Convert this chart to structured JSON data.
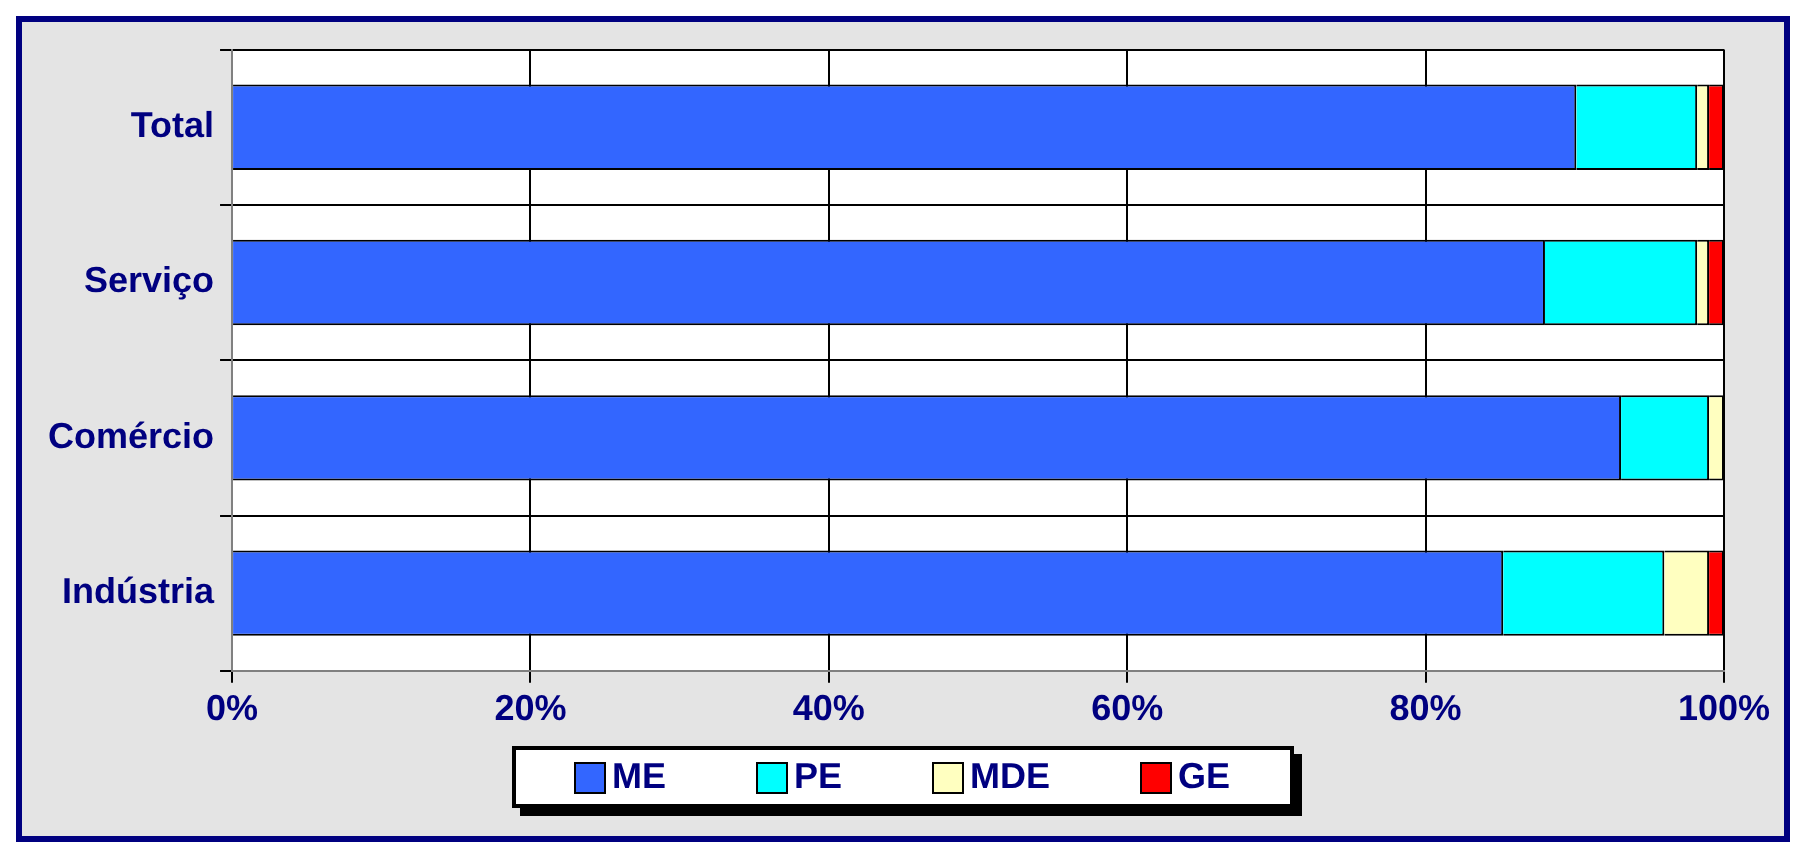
{
  "chart_data": {
    "type": "bar",
    "orientation": "horizontal",
    "stacked": true,
    "categories": [
      "Total",
      "Serviço",
      "Comércio",
      "Indústria"
    ],
    "series": [
      {
        "name": "ME",
        "color": "#3366ff",
        "values": [
          90.1,
          88.0,
          93.1,
          85.2
        ]
      },
      {
        "name": "PE",
        "color": "#00ffff",
        "values": [
          8.1,
          10.2,
          5.9,
          10.8
        ]
      },
      {
        "name": "MDE",
        "color": "#ffffc0",
        "values": [
          0.8,
          0.8,
          1.0,
          3.0
        ]
      },
      {
        "name": "GE",
        "color": "#ff0000",
        "values": [
          1.0,
          1.0,
          0,
          1.0
        ]
      }
    ],
    "xlim": [
      0,
      100
    ],
    "xticks": [
      {
        "value": 0,
        "label": "0%"
      },
      {
        "value": 20,
        "label": "20%"
      },
      {
        "value": 40,
        "label": "40%"
      },
      {
        "value": 60,
        "label": "60%"
      },
      {
        "value": 80,
        "label": "80%"
      },
      {
        "value": 100,
        "label": "100%"
      }
    ],
    "grid": true,
    "legend": "bottom"
  }
}
